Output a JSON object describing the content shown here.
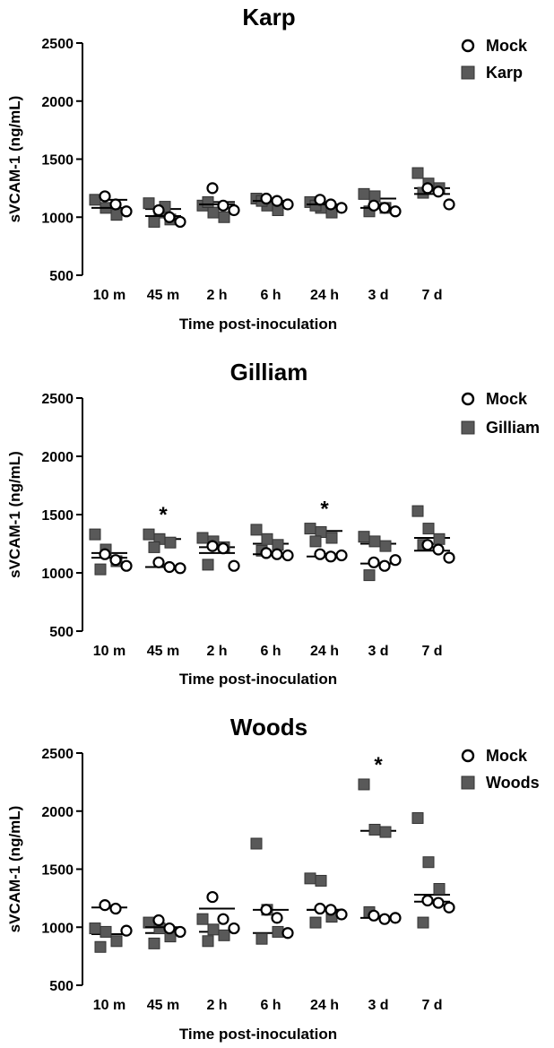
{
  "chart_data": [
    {
      "type": "scatter",
      "title": "Karp",
      "xlabel": "Time post-inoculation",
      "ylabel": "sVCAM-1 (ng/mL)",
      "ylim": [
        500,
        2500
      ],
      "yticks": [
        "500",
        "1000",
        "1500",
        "2000",
        "2500"
      ],
      "categories": [
        "10 m",
        "45 m",
        "2 h",
        "6 h",
        "24 h",
        "3 d",
        "7 d"
      ],
      "series": [
        {
          "name": "Mock",
          "marker": "open-circle",
          "points": [
            [
              1,
              1180
            ],
            [
              1,
              1110
            ],
            [
              1,
              1050
            ],
            [
              2,
              1060
            ],
            [
              2,
              1000
            ],
            [
              2,
              960
            ],
            [
              3,
              1250
            ],
            [
              3,
              1100
            ],
            [
              3,
              1060
            ],
            [
              4,
              1160
            ],
            [
              4,
              1140
            ],
            [
              4,
              1110
            ],
            [
              5,
              1150
            ],
            [
              5,
              1110
            ],
            [
              5,
              1080
            ],
            [
              6,
              1100
            ],
            [
              6,
              1080
            ],
            [
              6,
              1050
            ],
            [
              7,
              1250
            ],
            [
              7,
              1220
            ],
            [
              7,
              1110
            ]
          ],
          "mean": [
            1080,
            1010,
            1110,
            1140,
            1110,
            1080,
            1200
          ]
        },
        {
          "name": "Karp",
          "marker": "filled-square",
          "points": [
            [
              1,
              1150
            ],
            [
              1,
              1080
            ],
            [
              1,
              1020
            ],
            [
              2,
              1120
            ],
            [
              2,
              1040
            ],
            [
              2,
              980
            ],
            [
              2,
              960
            ],
            [
              2,
              1090
            ],
            [
              3,
              1100
            ],
            [
              3,
              1040
            ],
            [
              3,
              1000
            ],
            [
              3,
              1130
            ],
            [
              4,
              1160
            ],
            [
              4,
              1100
            ],
            [
              4,
              1060
            ],
            [
              4,
              1140
            ],
            [
              5,
              1130
            ],
            [
              5,
              1080
            ],
            [
              5,
              1040
            ],
            [
              5,
              1100
            ],
            [
              6,
              1200
            ],
            [
              6,
              1180
            ],
            [
              6,
              1080
            ],
            [
              6,
              1050
            ],
            [
              7,
              1380
            ],
            [
              7,
              1290
            ],
            [
              7,
              1250
            ],
            [
              7,
              1210
            ]
          ],
          "mean": [
            1150,
            1070,
            1130,
            1130,
            1110,
            1160,
            1250
          ]
        }
      ],
      "significance": [],
      "legend": "top-right"
    },
    {
      "type": "scatter",
      "title": "Gilliam",
      "xlabel": "Time post-inoculation",
      "ylabel": "sVCAM-1 (ng/mL)",
      "ylim": [
        500,
        2500
      ],
      "yticks": [
        "500",
        "1000",
        "1500",
        "2000",
        "2500"
      ],
      "categories": [
        "10 m",
        "45 m",
        "2 h",
        "6 h",
        "24 h",
        "3 d",
        "7 d"
      ],
      "series": [
        {
          "name": "Mock",
          "marker": "open-circle",
          "points": [
            [
              1,
              1160
            ],
            [
              1,
              1110
            ],
            [
              1,
              1060
            ],
            [
              2,
              1090
            ],
            [
              2,
              1050
            ],
            [
              2,
              1040
            ],
            [
              3,
              1230
            ],
            [
              3,
              1210
            ],
            [
              3,
              1060
            ],
            [
              4,
              1170
            ],
            [
              4,
              1160
            ],
            [
              4,
              1150
            ],
            [
              5,
              1160
            ],
            [
              5,
              1140
            ],
            [
              5,
              1150
            ],
            [
              6,
              1090
            ],
            [
              6,
              1060
            ],
            [
              6,
              1110
            ],
            [
              7,
              1240
            ],
            [
              7,
              1200
            ],
            [
              7,
              1130
            ]
          ],
          "mean": [
            1130,
            1050,
            1170,
            1160,
            1140,
            1080,
            1190
          ]
        },
        {
          "name": "Gilliam",
          "marker": "filled-square",
          "points": [
            [
              1,
              1330
            ],
            [
              1,
              1200
            ],
            [
              1,
              1100
            ],
            [
              1,
              1030
            ],
            [
              2,
              1330
            ],
            [
              2,
              1290
            ],
            [
              2,
              1260
            ],
            [
              2,
              1220
            ],
            [
              3,
              1300
            ],
            [
              3,
              1270
            ],
            [
              3,
              1220
            ],
            [
              3,
              1070
            ],
            [
              4,
              1370
            ],
            [
              4,
              1290
            ],
            [
              4,
              1240
            ],
            [
              4,
              1190
            ],
            [
              5,
              1380
            ],
            [
              5,
              1350
            ],
            [
              5,
              1300
            ],
            [
              5,
              1270
            ],
            [
              6,
              1310
            ],
            [
              6,
              1270
            ],
            [
              6,
              1230
            ],
            [
              6,
              980
            ],
            [
              7,
              1530
            ],
            [
              7,
              1380
            ],
            [
              7,
              1290
            ],
            [
              7,
              1240
            ]
          ],
          "mean": [
            1170,
            1290,
            1220,
            1250,
            1360,
            1250,
            1300
          ]
        }
      ],
      "significance": [
        "45 m",
        "24 h"
      ],
      "legend": "top-right"
    },
    {
      "type": "scatter",
      "title": "Woods",
      "xlabel": "Time post-inoculation",
      "ylabel": "sVCAM-1 (ng/mL)",
      "ylim": [
        500,
        2500
      ],
      "yticks": [
        "500",
        "1000",
        "1500",
        "2000",
        "2500"
      ],
      "categories": [
        "10 m",
        "45 m",
        "2 h",
        "6 h",
        "24 h",
        "3 d",
        "7 d"
      ],
      "series": [
        {
          "name": "Mock",
          "marker": "open-circle",
          "points": [
            [
              1,
              1190
            ],
            [
              1,
              1160
            ],
            [
              1,
              970
            ],
            [
              2,
              1060
            ],
            [
              2,
              990
            ],
            [
              2,
              960
            ],
            [
              3,
              1260
            ],
            [
              3,
              1070
            ],
            [
              3,
              990
            ],
            [
              4,
              1150
            ],
            [
              4,
              1080
            ],
            [
              4,
              950
            ],
            [
              5,
              1160
            ],
            [
              5,
              1150
            ],
            [
              5,
              1110
            ],
            [
              6,
              1100
            ],
            [
              6,
              1070
            ],
            [
              6,
              1080
            ],
            [
              7,
              1230
            ],
            [
              7,
              1210
            ],
            [
              7,
              1170
            ]
          ],
          "mean": [
            1170,
            1000,
            1160,
            1150,
            1150,
            1080,
            1220
          ]
        },
        {
          "name": "Woods",
          "marker": "filled-square",
          "points": [
            [
              1,
              990
            ],
            [
              1,
              960
            ],
            [
              1,
              880
            ],
            [
              1,
              830
            ],
            [
              2,
              1040
            ],
            [
              2,
              990
            ],
            [
              2,
              920
            ],
            [
              2,
              860
            ],
            [
              3,
              1070
            ],
            [
              3,
              980
            ],
            [
              3,
              930
            ],
            [
              3,
              880
            ],
            [
              4,
              1720
            ],
            [
              4,
              1150
            ],
            [
              4,
              960
            ],
            [
              4,
              900
            ],
            [
              5,
              1420
            ],
            [
              5,
              1400
            ],
            [
              5,
              1090
            ],
            [
              5,
              1040
            ],
            [
              6,
              2230
            ],
            [
              6,
              1840
            ],
            [
              6,
              1820
            ],
            [
              6,
              1130
            ],
            [
              7,
              1940
            ],
            [
              7,
              1560
            ],
            [
              7,
              1330
            ],
            [
              7,
              1040
            ]
          ],
          "mean": [
            940,
            950,
            960,
            950,
            1150,
            1830,
            1280
          ]
        }
      ],
      "significance": [
        "3 d"
      ],
      "legend": "top-right"
    }
  ]
}
